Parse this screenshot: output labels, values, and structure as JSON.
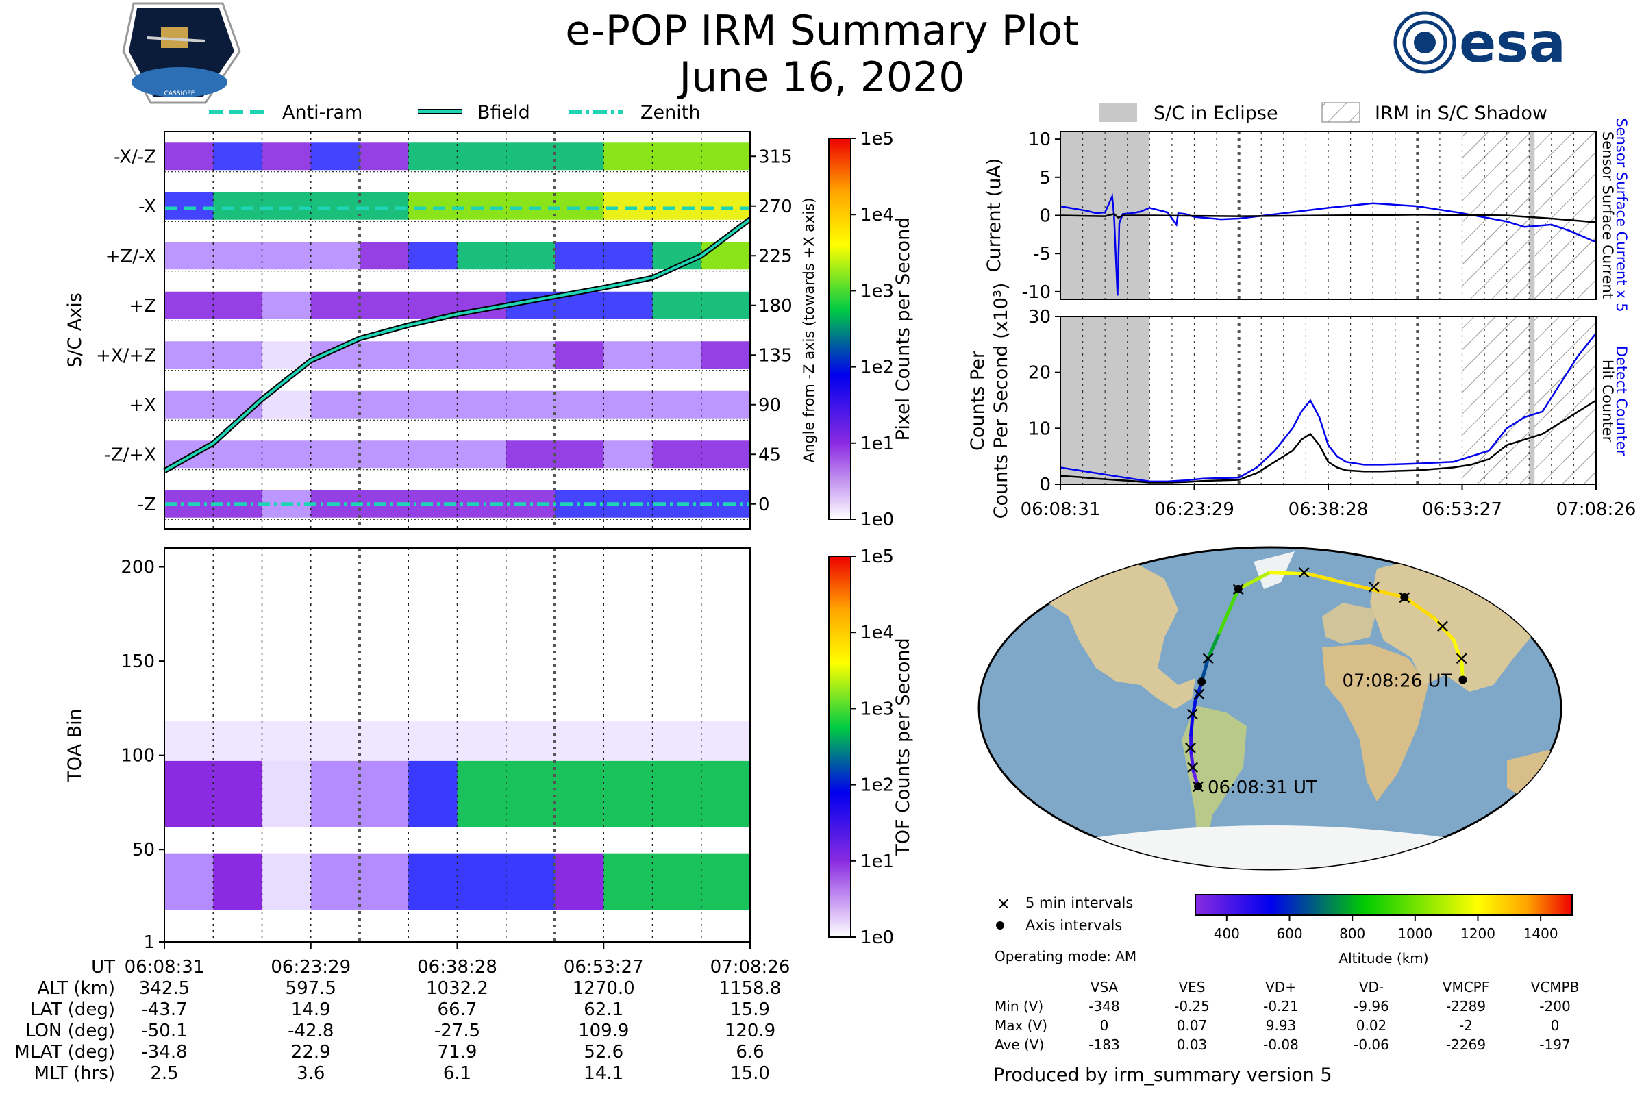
{
  "header": {
    "title": "e-POP IRM Summary Plot",
    "date": "June 16, 2020",
    "logo_left": "CASSIOPE",
    "logo_right": "esa"
  },
  "colors": {
    "teal": "#1fd3b5",
    "blue_trace": "#0000ee",
    "eclipse_gray": "#c8c8c8",
    "ocean": "#7fa8c8",
    "land": "#d9c99a"
  },
  "chart_data": [
    {
      "type": "heatmap",
      "id": "sc_axis",
      "ylabel": "S/C Axis",
      "right_label": "Angle from -Z axis (towards +X axis)",
      "rows": [
        "-X/-Z",
        "-X",
        "+Z/-X",
        "+Z",
        "+X/+Z",
        "+X",
        "-Z/+X",
        "-Z"
      ],
      "right_ticks": [
        "315",
        "270",
        "225",
        "180",
        "135",
        "90",
        "45",
        "0"
      ],
      "ylim": [
        -22.5,
        337.5
      ],
      "legend": [
        "Anti-ram",
        "Bfield",
        "Zenith"
      ],
      "bfield": {
        "t": [
          0,
          5,
          10,
          15,
          20,
          25,
          30,
          35,
          40,
          45,
          50,
          55,
          60
        ],
        "angle": [
          30,
          55,
          95,
          130,
          150,
          162,
          172,
          180,
          188,
          196,
          205,
          225,
          258
        ]
      },
      "antiram_angle": 268,
      "zenith_angle": 0,
      "colorbar": {
        "label": "Pixel Counts per Second",
        "ticks": [
          "1e0",
          "1e1",
          "1e2",
          "1e3",
          "1e4",
          "1e5"
        ]
      }
    },
    {
      "type": "heatmap",
      "id": "toa",
      "ylabel": "TOA Bin",
      "yticks": [
        "1",
        "50",
        "100",
        "150",
        "200"
      ],
      "ylim": [
        1,
        210
      ],
      "colorbar": {
        "label": "TOF Counts per Second",
        "ticks": [
          "1e0",
          "1e1",
          "1e2",
          "1e3",
          "1e4",
          "1e5"
        ]
      }
    },
    {
      "type": "line",
      "id": "current",
      "ylabel": "Current (uA)",
      "ylim": [
        -11,
        11
      ],
      "yticks": [
        "-10",
        "-5",
        "0",
        "5",
        "10"
      ],
      "series": [
        {
          "name": "Sensor Surface Current x 5",
          "color": "#0000ee",
          "t": [
            0,
            1,
            2,
            3,
            4,
            5,
            5.8,
            6,
            6.4,
            6.6,
            7,
            8,
            9,
            10,
            12,
            13,
            13.2,
            14,
            15,
            18,
            20,
            25,
            30,
            35,
            40,
            45,
            50,
            52,
            55,
            57,
            60
          ],
          "v": [
            1.2,
            1,
            0.8,
            0.6,
            0.3,
            0.4,
            2.5,
            0.2,
            -10.5,
            -1,
            0.2,
            0.3,
            0.5,
            1,
            0.4,
            -1.2,
            0.3,
            0.2,
            -0.2,
            -0.5,
            -0.4,
            0.3,
            1,
            1.6,
            1.2,
            0.3,
            -0.8,
            -1.5,
            -1.2,
            -2,
            -3.5
          ]
        },
        {
          "name": "Sensor Surface Current",
          "color": "#000000",
          "t": [
            0,
            5,
            6,
            6.5,
            7,
            10,
            20,
            30,
            40,
            50,
            55,
            60
          ],
          "v": [
            0,
            -0.1,
            0.2,
            -0.3,
            0,
            0,
            -0.1,
            0,
            0.1,
            0,
            -0.4,
            -0.9
          ]
        }
      ]
    },
    {
      "type": "line",
      "id": "counts",
      "ylabel": "Counts Per Second (x10³)",
      "ylim": [
        0,
        30
      ],
      "yticks": [
        "0",
        "10",
        "20",
        "30"
      ],
      "series": [
        {
          "name": "Detect Counter",
          "color": "#0000ee",
          "t": [
            0,
            2,
            4,
            6,
            8,
            10,
            12,
            14,
            16,
            20,
            22,
            24,
            25,
            26,
            27,
            28,
            29,
            30,
            31,
            32,
            34,
            36,
            40,
            44,
            46,
            48,
            50,
            52,
            54,
            56,
            58,
            60
          ],
          "v": [
            3,
            2.5,
            2,
            1.5,
            1,
            0.5,
            0.5,
            0.7,
            1,
            1.2,
            3,
            6,
            8,
            10,
            13,
            15,
            12,
            7,
            5,
            4,
            3.5,
            3.5,
            3.7,
            4,
            5,
            6,
            10,
            12,
            13,
            18,
            23,
            27
          ]
        },
        {
          "name": "Hit Counter",
          "color": "#000000",
          "t": [
            0,
            2,
            4,
            6,
            8,
            10,
            12,
            14,
            16,
            20,
            22,
            24,
            25,
            26,
            27,
            28,
            29,
            30,
            31,
            32,
            34,
            36,
            40,
            44,
            46,
            48,
            50,
            52,
            54,
            56,
            58,
            60
          ],
          "v": [
            1.5,
            1.3,
            1,
            0.8,
            0.6,
            0.3,
            0.3,
            0.4,
            0.6,
            0.8,
            2,
            4,
            5,
            6,
            8,
            9,
            7,
            4,
            3,
            2.5,
            2.3,
            2.3,
            2.5,
            3,
            3.5,
            4.5,
            7,
            8,
            9,
            11,
            13,
            15
          ]
        }
      ],
      "x_tick_labels": [
        "06:08:31",
        "06:23:29",
        "06:38:28",
        "06:53:27",
        "07:08:26"
      ]
    },
    {
      "type": "scatter",
      "id": "ground_track",
      "start_label": "06:08:31 UT",
      "end_label": "07:08:26 UT",
      "track": {
        "lon": [
          -50.1,
          -51,
          -50.5,
          -49.5,
          -48,
          -46,
          -44,
          -42.8,
          -40,
          -35,
          -27.5,
          0,
          40,
          80,
          109.9,
          120,
          124,
          123,
          120.9
        ],
        "lat": [
          -43.7,
          -35,
          -25,
          -15,
          -5,
          5,
          10,
          14.9,
          28,
          42,
          66.7,
          76,
          75,
          68,
          62.1,
          50,
          38,
          25,
          15.9
        ],
        "alt": [
          342.5,
          380,
          430,
          480,
          540,
          580,
          590,
          597.5,
          700,
          850,
          1032.2,
          1150,
          1230,
          1265,
          1270,
          1250,
          1220,
          1190,
          1158.8
        ]
      },
      "five_min_marks": [
        {
          "lon": -50.1,
          "lat": -43.7
        },
        {
          "lon": -51,
          "lat": -33
        },
        {
          "lon": -50.5,
          "lat": -22
        },
        {
          "lon": -48,
          "lat": -3
        },
        {
          "lon": -44,
          "lat": 8
        },
        {
          "lon": -40,
          "lat": 28
        },
        {
          "lon": -27.5,
          "lat": 66.7
        },
        {
          "lon": 35,
          "lat": 76
        },
        {
          "lon": 92,
          "lat": 68
        },
        {
          "lon": 109.9,
          "lat": 62.1
        },
        {
          "lon": 122,
          "lat": 46
        },
        {
          "lon": 124,
          "lat": 28
        }
      ],
      "axis_marks": [
        {
          "lon": -50.1,
          "lat": -43.7
        },
        {
          "lon": -42.8,
          "lat": 14.9
        },
        {
          "lon": -27.5,
          "lat": 66.7
        },
        {
          "lon": 109.9,
          "lat": 62.1
        },
        {
          "lon": 120.9,
          "lat": 15.9
        }
      ],
      "colorbar": {
        "label": "Altitude (km)",
        "ticks": [
          "400",
          "600",
          "800",
          "1000",
          "1200",
          "1400"
        ],
        "range": [
          300,
          1500
        ]
      }
    }
  ],
  "legend_top": {
    "anti_ram": "Anti-ram",
    "bfield": "Bfield",
    "zenith": "Zenith"
  },
  "legend_right": {
    "eclipse": "S/C in Eclipse",
    "shadow": "IRM in S/C Shadow"
  },
  "right_axis_labels": {
    "current_blue": "Sensor Surface Current x 5",
    "current_black": "Sensor Surface Current",
    "counts_blue": "Detect Counter",
    "counts_black": "Hit Counter"
  },
  "map_legend": {
    "five_min": "5 min intervals",
    "axis": "Axis intervals",
    "mode": "Operating mode: AM"
  },
  "footer_table": {
    "rows": [
      {
        "label": "UT",
        "values": [
          "06:08:31",
          "06:23:29",
          "06:38:28",
          "06:53:27",
          "07:08:26"
        ]
      },
      {
        "label": "ALT (km)",
        "values": [
          "342.5",
          "597.5",
          "1032.2",
          "1270.0",
          "1158.8"
        ]
      },
      {
        "label": "LAT (deg)",
        "values": [
          "-43.7",
          "14.9",
          "66.7",
          "62.1",
          "15.9"
        ]
      },
      {
        "label": "LON (deg)",
        "values": [
          "-50.1",
          "-42.8",
          "-27.5",
          "109.9",
          "120.9"
        ]
      },
      {
        "label": "MLAT (deg)",
        "values": [
          "-34.8",
          "22.9",
          "71.9",
          "52.6",
          "6.6"
        ]
      },
      {
        "label": "MLT (hrs)",
        "values": [
          "2.5",
          "3.6",
          "6.1",
          "14.1",
          "15.0"
        ]
      }
    ]
  },
  "voltage_table": {
    "headers": [
      "VSA",
      "VES",
      "VD+",
      "VD-",
      "VMCPF",
      "VCMPB"
    ],
    "rows": [
      {
        "label": "Min (V)",
        "values": [
          "-348",
          "-0.25",
          "-0.21",
          "-9.96",
          "-2289",
          "-200"
        ]
      },
      {
        "label": "Max (V)",
        "values": [
          "0",
          "0.07",
          "9.93",
          "0.02",
          "-2",
          "0"
        ]
      },
      {
        "label": "Ave (V)",
        "values": [
          "-183",
          "0.03",
          "-0.08",
          "-0.06",
          "-2269",
          "-197"
        ]
      }
    ]
  },
  "footer_note": "Produced by irm_summary version 5"
}
